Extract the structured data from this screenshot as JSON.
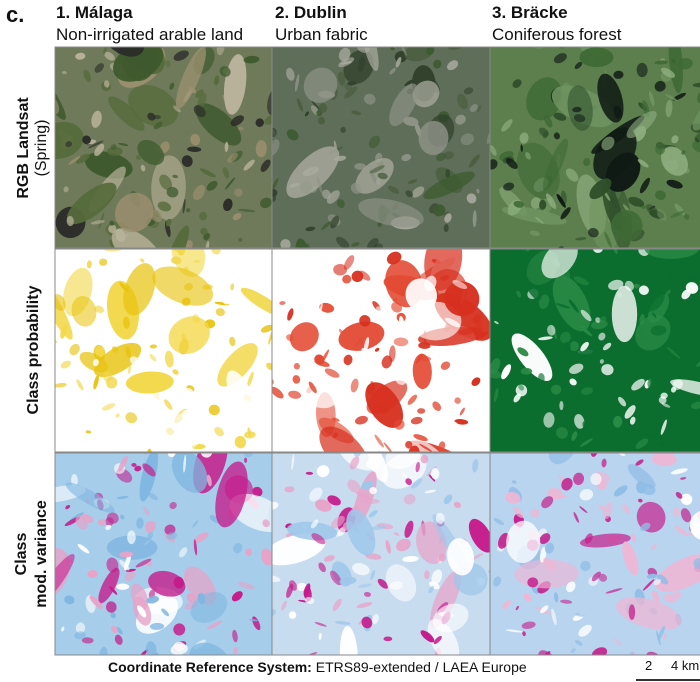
{
  "panel_label": "c.",
  "columns": [
    {
      "title": "1. Málaga",
      "subtitle": "Non-irrigated arable land"
    },
    {
      "title": "2. Dublin",
      "subtitle": "Urban fabric"
    },
    {
      "title": "3. Bräcke",
      "subtitle": "Coniferous forest"
    }
  ],
  "rows": [
    {
      "label": "RGB Landsat",
      "sublabel": "(Spring)"
    },
    {
      "label": "Class probability"
    },
    {
      "label": "Class",
      "sublabel": "mod. variance"
    }
  ],
  "footer": {
    "label": "Coordinate Reference System:",
    "text": "ETRS89-extended / LAEA Europe"
  },
  "scale_bar": {
    "ticks": [
      "2",
      "4 km"
    ]
  }
}
